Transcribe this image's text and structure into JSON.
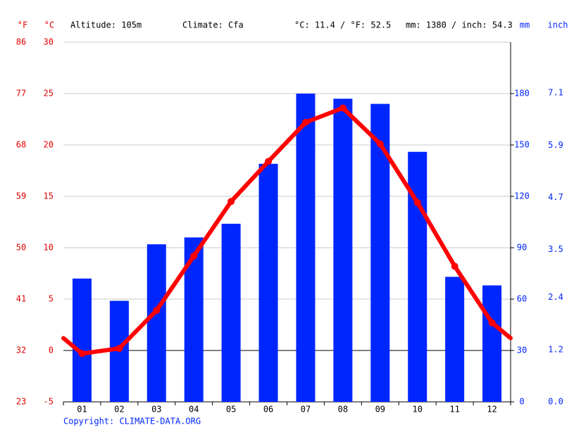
{
  "chart_data": {
    "type": "climate",
    "header": {
      "altitude": "Altitude: 105m",
      "climate": "Climate: Cfa",
      "temperature": "°C: 11.4 / °F: 52.5",
      "precipitation": "mm: 1380 / inch: 54.3"
    },
    "axis_labels": {
      "fahrenheit": "°F",
      "celsius": "°C",
      "mm": "mm",
      "inch": "inch"
    },
    "copyright": "Copyright: CLIMATE-DATA.ORG",
    "categories": [
      "01",
      "02",
      "03",
      "04",
      "05",
      "06",
      "07",
      "08",
      "09",
      "10",
      "11",
      "12"
    ],
    "series": [
      {
        "type": "bar",
        "axis": "y2",
        "color": "#0026ff",
        "values": [
          72,
          59,
          92,
          96,
          104,
          139,
          180,
          177,
          174,
          146,
          73,
          68
        ]
      },
      {
        "type": "line",
        "axis": "y",
        "color": "#ff0000",
        "values": [
          -0.3,
          0.2,
          3.9,
          9.2,
          14.5,
          18.4,
          22.2,
          23.6,
          20.1,
          14.4,
          8.2,
          2.7
        ]
      }
    ],
    "ylim": [
      -5,
      30
    ],
    "yticks": [
      -5,
      0,
      5,
      10,
      15,
      20,
      25,
      30
    ],
    "fahrenheit_ticks": [
      23,
      32,
      41,
      50,
      59,
      68,
      77,
      86
    ],
    "y2lim": [
      0,
      210
    ],
    "y2ticks": [
      0,
      30,
      60,
      90,
      120,
      150,
      180
    ],
    "inch_ticks": [
      {
        "value": 0,
        "label": "0.0"
      },
      1.2,
      2.4,
      3.5,
      4.7,
      5.9,
      7.1
    ],
    "grid": true
  }
}
